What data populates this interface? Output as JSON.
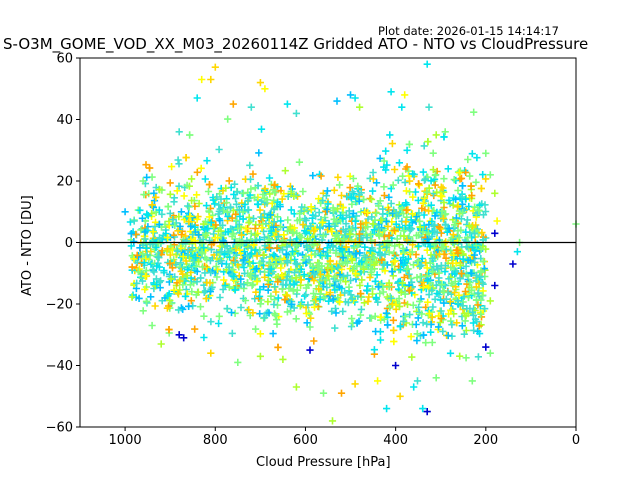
{
  "header": {
    "plot_date": "Plot date: 2026-01-15 14:14:17",
    "title": "S-O3M_GOME_VOD_XX_M03_20260114Z Gridded ATO - NTO vs CloudPressure"
  },
  "chart_data": {
    "type": "scatter",
    "title": "S-O3M_GOME_VOD_XX_M03_20260114Z Gridded ATO - NTO vs CloudPressure",
    "xlabel": "Cloud Pressure [hPa]",
    "ylabel": "ATO - NTO [DU]",
    "xlim": [
      1100,
      0
    ],
    "ylim": [
      -60,
      60
    ],
    "x_reversed": true,
    "xticks": [
      1000,
      800,
      600,
      400,
      200,
      0
    ],
    "xtick_labels": [
      "1000",
      "800",
      "600",
      "400",
      "200",
      "0"
    ],
    "yticks": [
      -60,
      -40,
      -20,
      0,
      20,
      40,
      60
    ],
    "ytick_labels": [
      "−60",
      "−40",
      "−20",
      "0",
      "20",
      "40",
      "60"
    ],
    "reference_line": {
      "y": 0,
      "color": "#000000"
    },
    "marker": "+",
    "grid": false,
    "legend": "none",
    "palette": [
      "#0000cd",
      "#00bfff",
      "#00e5ee",
      "#40e0d0",
      "#7fff7f",
      "#adff2f",
      "#ffff00",
      "#ffd700",
      "#ffa500"
    ],
    "bulk_point_count": 2600,
    "points": [
      {
        "x": 1000,
        "y": 10,
        "c": 1
      },
      {
        "x": 960,
        "y": 20,
        "c": 4
      },
      {
        "x": 940,
        "y": -27,
        "c": 4
      },
      {
        "x": 920,
        "y": -33,
        "c": 5
      },
      {
        "x": 880,
        "y": 36,
        "c": 3
      },
      {
        "x": 870,
        "y": -31,
        "c": 0
      },
      {
        "x": 830,
        "y": 53,
        "c": 6
      },
      {
        "x": 810,
        "y": 53,
        "c": 7
      },
      {
        "x": 800,
        "y": 57,
        "c": 7
      },
      {
        "x": 840,
        "y": 47,
        "c": 2
      },
      {
        "x": 760,
        "y": 45,
        "c": 8
      },
      {
        "x": 720,
        "y": 44,
        "c": 3
      },
      {
        "x": 700,
        "y": 52,
        "c": 7
      },
      {
        "x": 690,
        "y": 50,
        "c": 6
      },
      {
        "x": 640,
        "y": 45,
        "c": 2
      },
      {
        "x": 620,
        "y": 42,
        "c": 3
      },
      {
        "x": 530,
        "y": 46,
        "c": 1
      },
      {
        "x": 500,
        "y": 48,
        "c": 1
      },
      {
        "x": 490,
        "y": 47,
        "c": 2
      },
      {
        "x": 480,
        "y": 44,
        "c": 5
      },
      {
        "x": 410,
        "y": 49,
        "c": 2
      },
      {
        "x": 380,
        "y": 48,
        "c": 6
      },
      {
        "x": 330,
        "y": 58,
        "c": 2
      },
      {
        "x": 310,
        "y": 35,
        "c": 5
      },
      {
        "x": 290,
        "y": 36,
        "c": 4
      },
      {
        "x": 240,
        "y": 27,
        "c": 4
      },
      {
        "x": 200,
        "y": 29,
        "c": 4
      },
      {
        "x": 190,
        "y": 22,
        "c": 4
      },
      {
        "x": 180,
        "y": 16,
        "c": 5
      },
      {
        "x": 175,
        "y": 7,
        "c": 6
      },
      {
        "x": 180,
        "y": 3,
        "c": 0
      },
      {
        "x": 140,
        "y": -7,
        "c": 0
      },
      {
        "x": 130,
        "y": -3,
        "c": 2
      },
      {
        "x": 125,
        "y": 0,
        "c": 4
      },
      {
        "x": 0,
        "y": 6,
        "c": 4
      },
      {
        "x": 180,
        "y": -14,
        "c": 0
      },
      {
        "x": 190,
        "y": -19,
        "c": 5
      },
      {
        "x": 200,
        "y": -34,
        "c": 0
      },
      {
        "x": 190,
        "y": -36,
        "c": 4
      },
      {
        "x": 230,
        "y": -45,
        "c": 4
      },
      {
        "x": 310,
        "y": -44,
        "c": 4
      },
      {
        "x": 330,
        "y": -55,
        "c": 0
      },
      {
        "x": 340,
        "y": -54,
        "c": 2
      },
      {
        "x": 360,
        "y": -47,
        "c": 2
      },
      {
        "x": 390,
        "y": -50,
        "c": 7
      },
      {
        "x": 420,
        "y": -54,
        "c": 2
      },
      {
        "x": 440,
        "y": -45,
        "c": 6
      },
      {
        "x": 490,
        "y": -46,
        "c": 7
      },
      {
        "x": 520,
        "y": -49,
        "c": 8
      },
      {
        "x": 540,
        "y": -58,
        "c": 5
      },
      {
        "x": 560,
        "y": -49,
        "c": 4
      },
      {
        "x": 620,
        "y": -47,
        "c": 5
      },
      {
        "x": 650,
        "y": -38,
        "c": 5
      },
      {
        "x": 700,
        "y": -37,
        "c": 5
      },
      {
        "x": 750,
        "y": -39,
        "c": 4
      },
      {
        "x": 810,
        "y": -36,
        "c": 7
      },
      {
        "x": 880,
        "y": -30,
        "c": 0
      },
      {
        "x": 590,
        "y": -35,
        "c": 0
      },
      {
        "x": 400,
        "y": -40,
        "c": 0
      }
    ]
  }
}
